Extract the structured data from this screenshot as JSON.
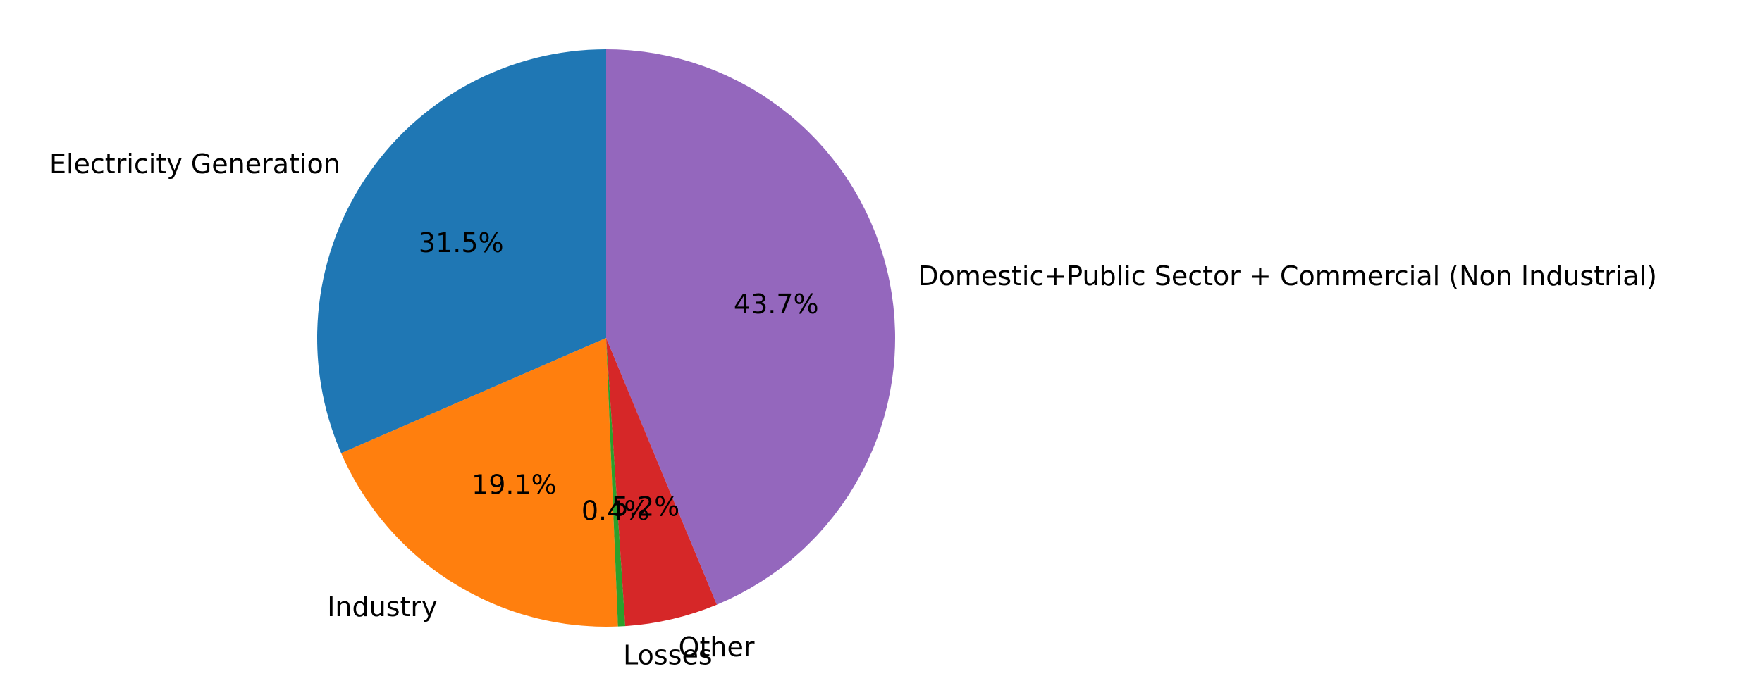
{
  "chart_data": {
    "type": "pie",
    "title": "",
    "start_angle_deg": 90,
    "direction": "counterclockwise",
    "slices": [
      {
        "label": "Electricity Generation",
        "percent_label": "31.5%",
        "value": 31.5,
        "color": "#1f77b4"
      },
      {
        "label": "Industry",
        "percent_label": "19.1%",
        "value": 19.1,
        "color": "#ff7f0e"
      },
      {
        "label": "Losses",
        "percent_label": "0.4%",
        "value": 0.4,
        "color": "#2ca02c"
      },
      {
        "label": "Other",
        "percent_label": "5.2%",
        "value": 5.2,
        "color": "#d62728"
      },
      {
        "label": "Domestic+Public Sector + Commercial (Non Industrial)",
        "percent_label": "43.7%",
        "value": 43.7,
        "color": "#9467bd"
      }
    ]
  }
}
